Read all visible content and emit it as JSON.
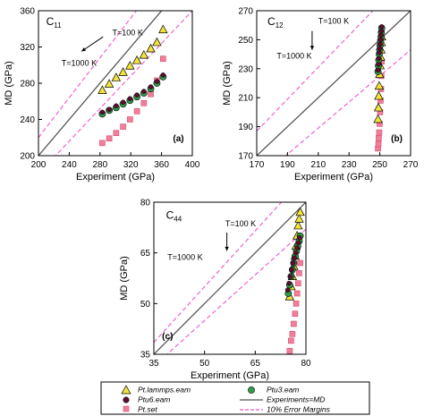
{
  "chart_data": [
    {
      "type": "scatter",
      "id": "c11",
      "title_main": "C",
      "title_sub": "11",
      "panel_label": "(a)",
      "xlabel": "Experiment (GPa)",
      "ylabel": "MD (GPa)",
      "xlim": [
        200,
        400
      ],
      "ylim": [
        200,
        360
      ],
      "xticks": [
        "200",
        "240",
        "280",
        "320",
        "360",
        "400"
      ],
      "yticks": [
        "200",
        "240",
        "280",
        "320",
        "360"
      ],
      "arrow_top": "T=100 K",
      "arrow_bottom": "T=1000 K",
      "series": [
        {
          "key": "lammps",
          "x": [
            283,
            292,
            301,
            310,
            319,
            328,
            337,
            346,
            354,
            362
          ],
          "y": [
            272,
            279,
            286,
            292,
            299,
            305,
            311,
            318,
            325,
            339
          ]
        },
        {
          "key": "ptu3",
          "x": [
            283,
            292,
            301,
            310,
            319,
            328,
            337,
            346,
            354,
            362
          ],
          "y": [
            246,
            250,
            253,
            257,
            261,
            265,
            269,
            274,
            280,
            287
          ]
        },
        {
          "key": "ptu6",
          "x": [
            283,
            292,
            301,
            310,
            319,
            328,
            337,
            346,
            354,
            362
          ],
          "y": [
            248,
            251,
            255,
            259,
            263,
            267,
            271,
            276,
            282,
            289
          ]
        },
        {
          "key": "ptset",
          "x": [
            283,
            292,
            301,
            310,
            319,
            328,
            337,
            346,
            354,
            362
          ],
          "y": [
            214,
            219,
            225,
            232,
            240,
            249,
            258,
            268,
            283,
            307
          ]
        }
      ]
    },
    {
      "type": "scatter",
      "id": "c12",
      "title_main": "C",
      "title_sub": "12",
      "panel_label": "(b)",
      "xlabel": "Experiment (GPa)",
      "ylabel": "MD (GPa)",
      "xlim": [
        170,
        270
      ],
      "ylim": [
        170,
        270
      ],
      "xticks": [
        "170",
        "190",
        "210",
        "230",
        "250",
        "270"
      ],
      "yticks": [
        "170",
        "190",
        "210",
        "230",
        "250",
        "270"
      ],
      "arrow_top": "T=100 K",
      "arrow_bottom": "T=1000 K",
      "series": [
        {
          "key": "lammps",
          "x": [
            248.8,
            249.1,
            249.3,
            249.6,
            249.9,
            250.2,
            250.5,
            250.8,
            251.0,
            251.2
          ],
          "y": [
            195,
            203,
            211,
            218,
            226,
            232,
            238,
            243,
            248,
            252
          ]
        },
        {
          "key": "ptu3",
          "x": [
            248.8,
            249.1,
            249.3,
            249.6,
            249.9,
            250.2,
            250.5,
            250.8,
            251.0,
            251.2
          ],
          "y": [
            228,
            232,
            236,
            240,
            243,
            246,
            249,
            252,
            255,
            258
          ]
        },
        {
          "key": "ptu6",
          "x": [
            248.8,
            249.1,
            249.3,
            249.6,
            249.9,
            250.2,
            250.5,
            250.8,
            251.0,
            251.2
          ],
          "y": [
            229,
            233,
            237,
            241,
            244,
            247,
            250,
            253,
            256,
            259
          ]
        },
        {
          "key": "ptset",
          "x": [
            248.8,
            249.1,
            249.3,
            249.6,
            249.9,
            250.2,
            250.5,
            250.8,
            251.0,
            251.2
          ],
          "y": [
            175,
            178,
            182,
            186,
            192,
            200,
            208,
            216,
            225,
            235
          ]
        }
      ]
    },
    {
      "type": "scatter",
      "id": "c44",
      "title_main": "C",
      "title_sub": "44",
      "panel_label": "(c)",
      "xlabel": "Experiment (GPa)",
      "ylabel": "MD (GPa)",
      "xlim": [
        35,
        80
      ],
      "ylim": [
        35,
        80
      ],
      "xticks": [
        "35",
        "50",
        "65",
        "80"
      ],
      "yticks": [
        "35",
        "50",
        "65",
        "80"
      ],
      "arrow_top": "T=100 K",
      "arrow_bottom": "T=1000 K",
      "series": [
        {
          "key": "lammps",
          "x": [
            75.2,
            75.6,
            76.0,
            76.4,
            76.8,
            77.1,
            77.4,
            77.7,
            78.0,
            78.3
          ],
          "y": [
            52,
            55,
            58,
            61,
            64,
            67,
            70,
            73,
            75,
            77
          ]
        },
        {
          "key": "ptu3",
          "x": [
            74.8,
            75.2,
            75.6,
            76.0,
            76.4,
            76.8,
            77.2,
            77.6,
            78.0,
            78.3
          ],
          "y": [
            53,
            55.5,
            58,
            60,
            62,
            64,
            65.5,
            67,
            68.5,
            70
          ]
        },
        {
          "key": "ptu6",
          "x": [
            74.6,
            75.0,
            75.4,
            75.8,
            76.2,
            76.6,
            77.0,
            77.4,
            77.8,
            78.1
          ],
          "y": [
            54,
            56,
            58,
            60,
            62,
            63.5,
            65,
            66.5,
            68,
            69.5
          ]
        },
        {
          "key": "ptset",
          "x": [
            75.2,
            75.6,
            76.0,
            76.4,
            76.8,
            77.1,
            77.4,
            77.7,
            78.0,
            78.3
          ],
          "y": [
            36,
            39,
            41,
            44,
            47,
            50,
            53,
            56,
            59,
            62
          ]
        }
      ]
    }
  ],
  "legend": {
    "items": [
      {
        "key": "lammps",
        "label": "Pt.lammps.eam"
      },
      {
        "key": "ptu3",
        "label": "Ptu3.eam"
      },
      {
        "key": "ptu6",
        "label": "Ptu6.eam"
      },
      {
        "key": "exp",
        "label": "Experiments=MD"
      },
      {
        "key": "ptset",
        "label": "Pt.set"
      },
      {
        "key": "err",
        "label": "10% Error Margins"
      }
    ]
  },
  "colors": {
    "lammps": "#f3e33a",
    "ptu3": "#2f9e4b",
    "ptu6": "#5a0f2e",
    "ptset": "#f07f9a",
    "ptset_edge": "#d64a6e",
    "exp_line": "#555555",
    "error_line": "#ee55cc"
  }
}
